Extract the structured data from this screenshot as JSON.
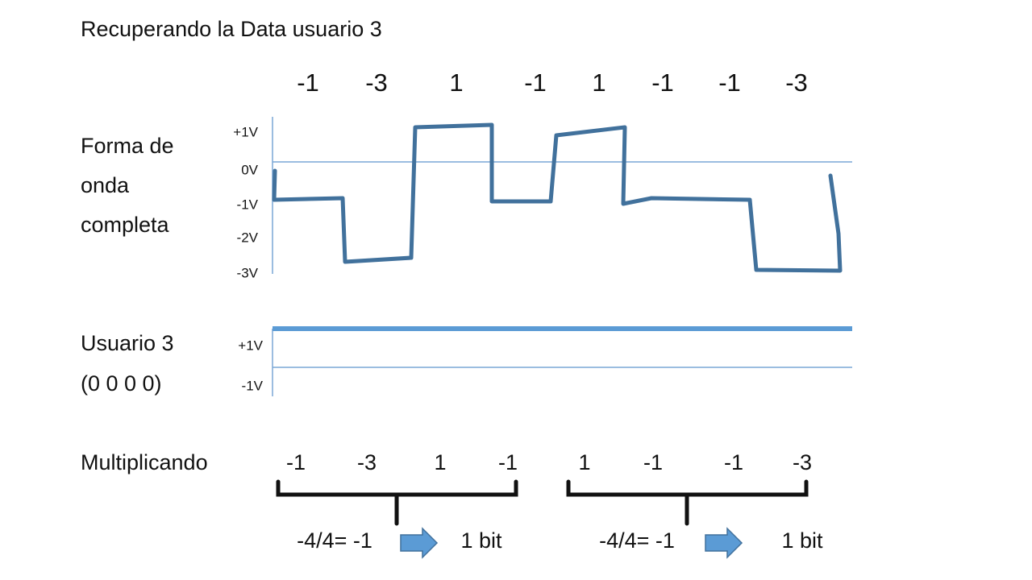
{
  "title": "Recuperando la Data usuario 3",
  "received": {
    "values": [
      "-1",
      "-3",
      "1",
      "-1",
      "1",
      "-1",
      "-1",
      "-3"
    ]
  },
  "waveform": {
    "label": [
      "Forma de",
      "onda",
      "completa"
    ],
    "axis_labels": [
      "+1V",
      "0V",
      "-1V",
      "-2V",
      "-3V"
    ]
  },
  "user": {
    "label": [
      "Usuario 3",
      "(0 0 0 0)"
    ],
    "axis_labels": [
      "+1V",
      "-1V"
    ]
  },
  "multiply": {
    "label": "Multiplicando",
    "values": [
      "-1",
      "-3",
      "1",
      "-1",
      "1",
      "-1",
      "-1",
      "-3"
    ]
  },
  "results": [
    {
      "formula": "-4/4= -1",
      "bit": "1 bit"
    },
    {
      "formula": "-4/4= -1",
      "bit": "1 bit"
    }
  ]
}
